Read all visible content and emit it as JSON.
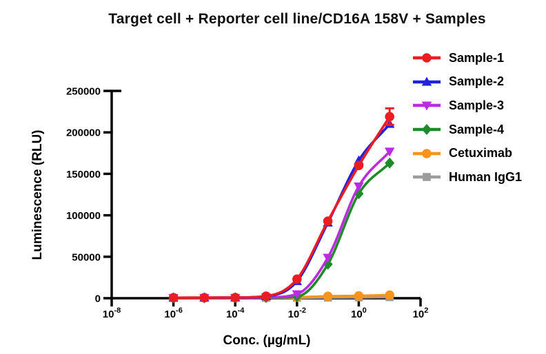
{
  "chart_data": {
    "type": "line",
    "title": "Target cell + Reporter cell line/CD16A 158V + Samples",
    "xlabel": "Conc. (µg/mL)",
    "ylabel": "Luminescence (RLU)",
    "x_scale": "log10",
    "xlim_exponents": [
      -8,
      2
    ],
    "x_tick_exponents": [
      -8,
      -6,
      -4,
      -2,
      0,
      2
    ],
    "ylim": [
      0,
      250000
    ],
    "y_ticks": [
      0,
      50000,
      100000,
      150000,
      200000,
      250000
    ],
    "grid": false,
    "legend_position": "right",
    "x": [
      1e-06,
      1e-05,
      0.0001,
      0.001,
      0.01,
      0.1,
      1,
      10
    ],
    "series": [
      {
        "name": "Sample-1",
        "color": "#ec1c23",
        "marker": "circle",
        "values": [
          600,
          700,
          800,
          2500,
          23000,
          93000,
          160000,
          219000
        ],
        "errors": [
          0,
          0,
          0,
          0,
          0,
          0,
          0,
          10000
        ]
      },
      {
        "name": "Sample-2",
        "color": "#2121e0",
        "marker": "triangle-up",
        "values": [
          600,
          700,
          800,
          2200,
          20500,
          91000,
          166000,
          210000
        ]
      },
      {
        "name": "Sample-3",
        "color": "#bb2be0",
        "marker": "triangle-down",
        "values": [
          400,
          450,
          500,
          1000,
          5000,
          49000,
          135000,
          177000
        ]
      },
      {
        "name": "Sample-4",
        "color": "#1e8b28",
        "marker": "diamond",
        "values": [
          400,
          450,
          500,
          800,
          2000,
          41000,
          126000,
          163000
        ]
      },
      {
        "name": "Cetuximab",
        "color": "#f7941d",
        "marker": "circle",
        "values": [
          600,
          600,
          700,
          900,
          1200,
          2300,
          2900,
          3800
        ]
      },
      {
        "name": "Human IgG1",
        "color": "#9c9c9c",
        "marker": "square",
        "values": [
          300,
          300,
          350,
          400,
          500,
          800,
          1000,
          1300
        ]
      }
    ]
  },
  "style": {
    "axis_color": "#000000",
    "background": "#ffffff"
  }
}
